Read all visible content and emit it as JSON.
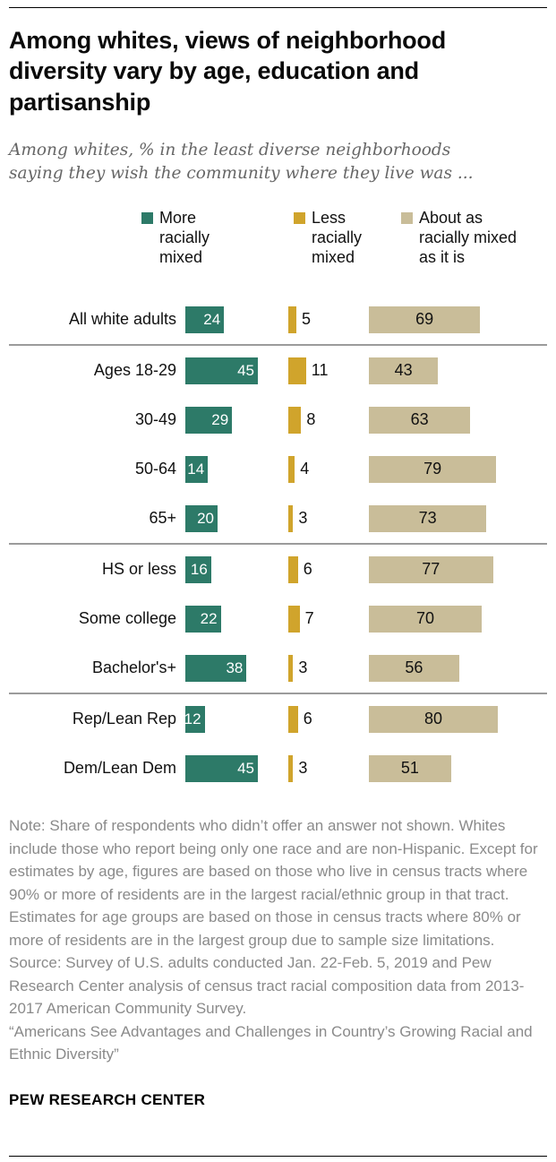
{
  "chart_data": {
    "type": "bar",
    "orientation": "horizontal",
    "title": "Among whites, views of neighborhood diversity vary by age, education and partisanship",
    "subtitle": "Among whites, % in the least diverse neighborhoods saying they wish the community where they live was ...",
    "legend_position": "top",
    "unit": "%",
    "xlim": [
      0,
      100
    ],
    "categories": [
      "All white adults",
      "Ages 18-29",
      "30-49",
      "50-64",
      "65+",
      "HS or less",
      "Some college",
      "Bachelor's+",
      "Rep/Lean Rep",
      "Dem/Lean Dem"
    ],
    "series": [
      {
        "name": "More racially mixed",
        "color": "#2d7a68",
        "values": [
          24,
          45,
          29,
          14,
          20,
          16,
          22,
          38,
          12,
          45
        ]
      },
      {
        "name": "Less racially mixed",
        "color": "#d0a42c",
        "values": [
          5,
          11,
          8,
          4,
          3,
          6,
          7,
          3,
          6,
          3
        ]
      },
      {
        "name": "About as racially mixed as it is",
        "color": "#c9bd99",
        "values": [
          69,
          43,
          63,
          79,
          73,
          77,
          70,
          56,
          80,
          51
        ]
      }
    ],
    "group_separators_after": [
      0,
      4,
      7
    ]
  },
  "notes": {
    "note": "Note: Share of respondents who didn’t offer an answer not shown. Whites include those who report being only one race and are non-Hispanic. Except for estimates by age, figures are based on those who live in census tracts where 90% or more of residents are in the largest racial/ethnic group in that tract. Estimates for age groups are based on those in census tracts where 80% or more of residents are in the largest group due to sample size limitations.",
    "source": "Source: Survey of U.S. adults conducted Jan. 22-Feb. 5, 2019 and Pew Research Center analysis of census tract racial composition data from 2013-2017 American Community Survey.",
    "citation": "“Americans See Advantages and Challenges in Country’s Growing Racial and Ethnic Diversity”"
  },
  "footer": {
    "brand": "PEW RESEARCH CENTER"
  }
}
